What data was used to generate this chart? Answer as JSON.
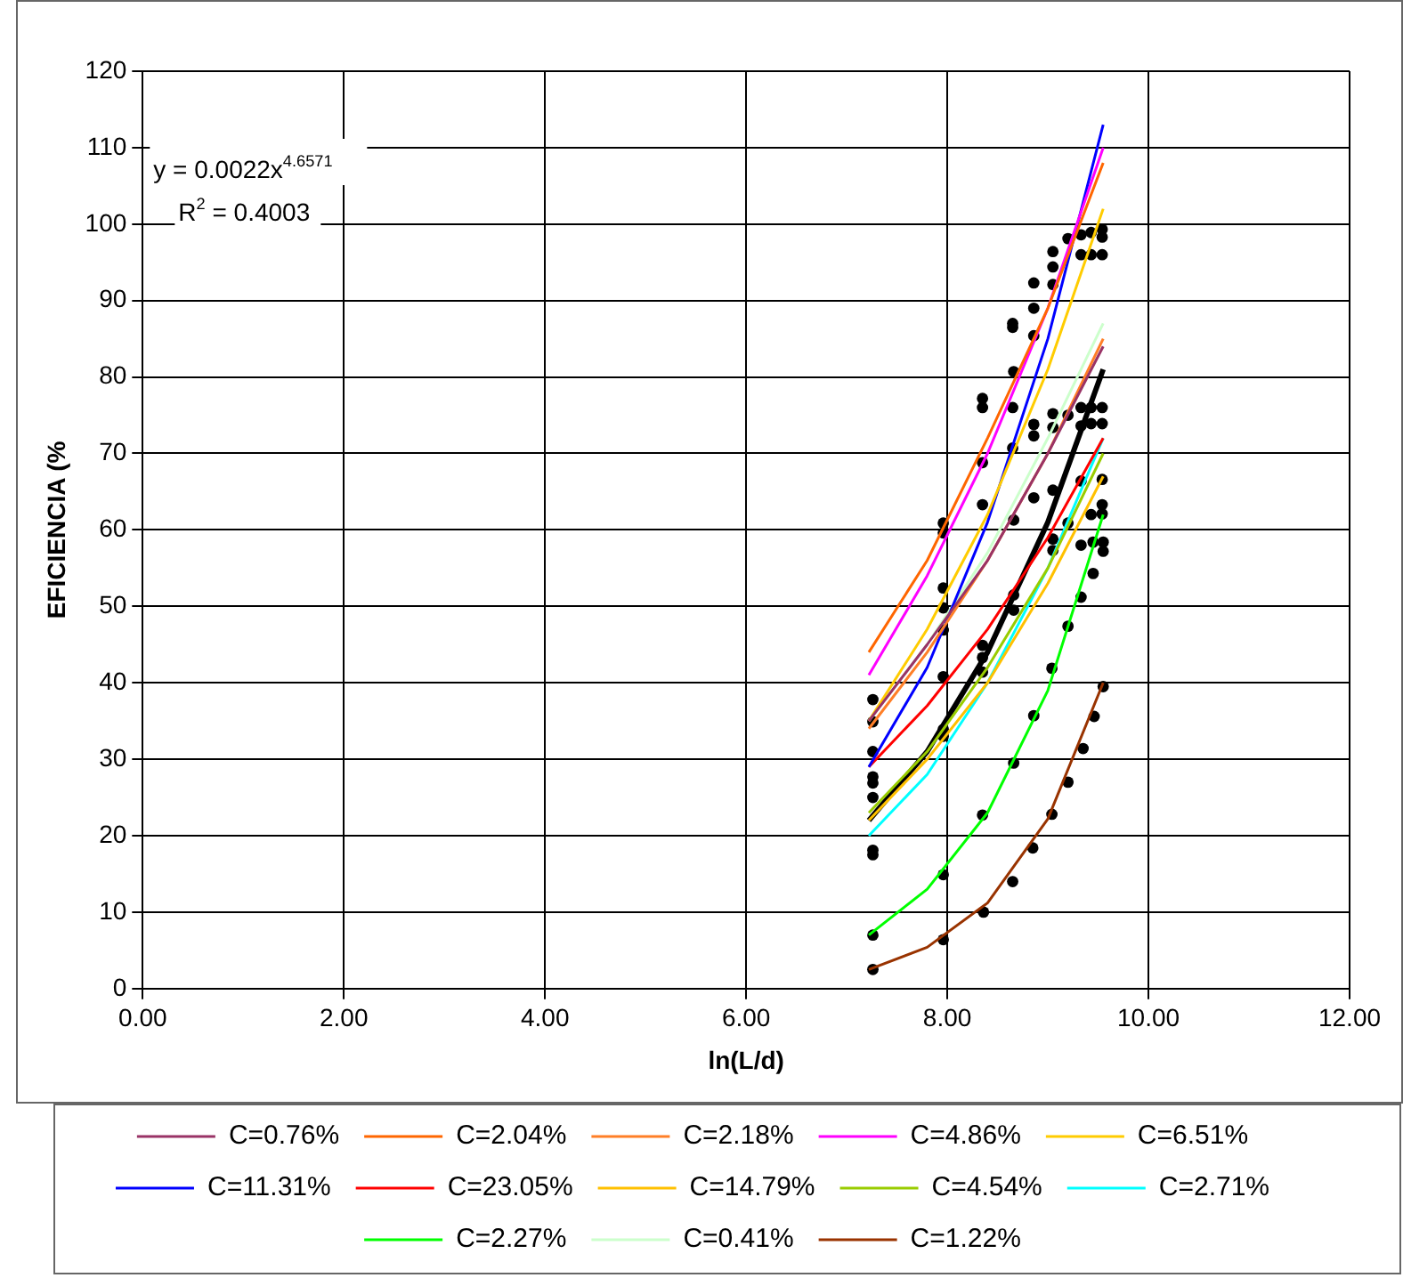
{
  "chart_data": {
    "type": "line",
    "xlabel": "ln(L/d)",
    "ylabel": "EFICIENCIA (%",
    "xlim": [
      0,
      12
    ],
    "xticks": [
      {
        "value": 0,
        "label": "0.00"
      },
      {
        "value": 2,
        "label": "2.00"
      },
      {
        "value": 4,
        "label": "4.00"
      },
      {
        "value": 6,
        "label": "6.00"
      },
      {
        "value": 8,
        "label": "8.00"
      },
      {
        "value": 10,
        "label": "10.00"
      },
      {
        "value": 12,
        "label": "12.00"
      }
    ],
    "ylim": [
      0,
      120
    ],
    "yticks": [
      0,
      10,
      20,
      30,
      40,
      50,
      60,
      70,
      80,
      90,
      100,
      110,
      120
    ],
    "grid": true,
    "legend": "bottom",
    "annotations": [
      "y = 0.0022x$^{4.6571}$",
      "R$^{2}$ = 0.4003"
    ],
    "x": [
      7.22,
      7.8,
      8.4,
      9.0,
      9.55
    ],
    "series": [
      {
        "name": "C=0.76%",
        "color": "#993366",
        "values": [
          35,
          45,
          56,
          70,
          84
        ]
      },
      {
        "name": "C=2.04%",
        "color": "#ff6600",
        "values": [
          44,
          56,
          72,
          89,
          108
        ]
      },
      {
        "name": "C=2.18%",
        "color": "#ff7f27",
        "values": [
          34,
          44,
          56,
          70,
          85
        ]
      },
      {
        "name": "C=4.86%",
        "color": "#ff00ff",
        "values": [
          41,
          54,
          70,
          89,
          110
        ]
      },
      {
        "name": "C=6.51%",
        "color": "#ffcc00",
        "values": [
          35,
          47,
          62,
          81,
          102
        ]
      },
      {
        "name": "C=11.31%",
        "color": "#0000ff",
        "values": [
          29,
          42,
          61,
          85,
          113
        ]
      },
      {
        "name": "C=23.05%",
        "color": "#ff0000",
        "values": [
          29,
          37,
          47,
          59,
          72
        ]
      },
      {
        "name": "C=14.79%",
        "color": "#ffc000",
        "values": [
          22,
          30,
          40,
          53,
          67
        ]
      },
      {
        "name": "C=4.54%",
        "color": "#99cc00",
        "values": [
          23,
          31,
          42,
          55,
          70
        ]
      },
      {
        "name": "C=2.71%",
        "color": "#00ffff",
        "values": [
          20,
          28,
          40,
          55,
          72
        ]
      },
      {
        "name": "C=2.27%",
        "color": "#00ff00",
        "values": [
          7,
          13,
          23,
          39,
          62
        ]
      },
      {
        "name": "C=0.41%",
        "color": "#ccffcc",
        "values": [
          35,
          45,
          57,
          72,
          87
        ]
      },
      {
        "name": "C=1.22%",
        "color": "#993300",
        "values": [
          2.5,
          5.4,
          11.2,
          22.2,
          40
        ]
      },
      {
        "type": "line",
        "color": "#000000",
        "values": [
          22,
          31,
          44,
          61,
          81
        ]
      },
      {
        "type": "scatter",
        "color": "#000000",
        "x": [
          7.96,
          8.35,
          8.35,
          8.35,
          8.65,
          8.65,
          8.66,
          8.65,
          8.65,
          8.86,
          8.86,
          8.86,
          8.86,
          8.86,
          8.86,
          9.05,
          9.05,
          9.05,
          9.05,
          9.05,
          9.05,
          9.2,
          9.2,
          9.33,
          9.33,
          9.33,
          9.33,
          9.33,
          9.43,
          9.43,
          9.43,
          9.43,
          9.43,
          9.54,
          9.54,
          9.54,
          9.54,
          9.54,
          9.54,
          9.54,
          9.54,
          7.26,
          7.26,
          7.26,
          7.26,
          7.26,
          7.26,
          7.26,
          7.26,
          7.96,
          7.96,
          7.96,
          7.96,
          7.96,
          7.96,
          7.96,
          7.96,
          8.35,
          8.35,
          8.35,
          8.35,
          8.35,
          8.66,
          8.66,
          8.66,
          8.66,
          8.86,
          9.05,
          9.05,
          9.04,
          9.2,
          9.2,
          9.33,
          9.33,
          9.45,
          9.45,
          9.55,
          9.55,
          7.26,
          7.26,
          7.96,
          8.36,
          8.65,
          8.85,
          9.04,
          9.2,
          9.35,
          9.46,
          9.55
        ],
        "values": [
          60.9,
          77.2,
          76,
          68.8,
          87,
          86.5,
          80.7,
          76,
          70.7,
          92.3,
          89,
          85.4,
          73.8,
          72.3,
          64.2,
          96.4,
          94.4,
          92.1,
          75.2,
          73.4,
          65.2,
          98.1,
          75,
          98.6,
          96,
          76,
          73.6,
          66.4,
          98.9,
          96,
          76,
          73.9,
          62,
          99.3,
          98.3,
          96,
          76,
          73.9,
          66.6,
          63.3,
          62.1,
          37.8,
          34.9,
          31,
          27.7,
          26.9,
          25,
          18.1,
          17.5,
          59.6,
          52.4,
          49.8,
          46.9,
          40.8,
          33.9,
          33,
          14.9,
          63.3,
          44.9,
          43.3,
          41.4,
          22.7,
          61.3,
          51.5,
          49.5,
          29.5,
          35.7,
          58.8,
          57.3,
          41.9,
          60.9,
          47.4,
          58,
          51.2,
          58.4,
          54.3,
          58.4,
          57.2,
          2.5,
          7,
          6.4,
          10,
          14,
          18.4,
          22.8,
          27,
          31.4,
          35.6,
          39.5
        ]
      }
    ]
  }
}
